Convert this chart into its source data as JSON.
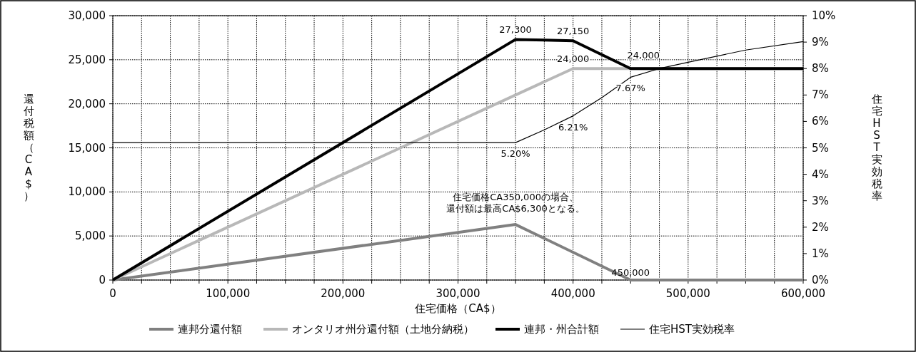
{
  "chart_data": {
    "type": "line",
    "xlabel": "住宅価格（CA$）",
    "ylabel": "還付税額（CA$）",
    "y2label": "住宅HST実効税率",
    "xlim": [
      0,
      600000
    ],
    "xticks": [
      0,
      {
        "value": 25000,
        "label": null
      },
      {
        "value": 50000,
        "label": null
      },
      {
        "value": 75000,
        "label": null
      },
      {
        "value": 100000,
        "label": "100,000"
      },
      {
        "value": 125000,
        "label": null
      },
      {
        "value": 150000,
        "label": null
      },
      {
        "value": 175000,
        "label": null
      },
      {
        "value": 200000,
        "label": "200,000"
      },
      {
        "value": 225000,
        "label": null
      },
      {
        "value": 250000,
        "label": null
      },
      {
        "value": 275000,
        "label": null
      },
      {
        "value": 300000,
        "label": "300,000"
      },
      {
        "value": 325000,
        "label": null
      },
      {
        "value": 350000,
        "label": null
      },
      {
        "value": 375000,
        "label": null
      },
      {
        "value": 400000,
        "label": "400,000"
      },
      {
        "value": 425000,
        "label": null
      },
      {
        "value": 450000,
        "label": null
      },
      {
        "value": 475000,
        "label": null
      },
      {
        "value": 500000,
        "label": "500,000"
      },
      {
        "value": 525000,
        "label": null
      },
      {
        "value": 550000,
        "label": null
      },
      {
        "value": 575000,
        "label": null
      },
      {
        "value": 600000,
        "label": "600,000"
      }
    ],
    "ylim": [
      0,
      30000
    ],
    "yticks": [
      0,
      {
        "value": 5000,
        "label": "5,000"
      },
      {
        "value": 10000,
        "label": "10,000"
      },
      {
        "value": 15000,
        "label": "15,000"
      },
      {
        "value": 20000,
        "label": "20,000"
      },
      {
        "value": 25000,
        "label": "25,000"
      },
      {
        "value": 30000,
        "label": "30,000"
      }
    ],
    "y2lim": [
      0,
      10
    ],
    "y2ticks": [
      {
        "value": 0,
        "label": "0%"
      },
      {
        "value": 1,
        "label": "1%"
      },
      {
        "value": 2,
        "label": "2%"
      },
      {
        "value": 3,
        "label": "3%"
      },
      {
        "value": 4,
        "label": "4%"
      },
      {
        "value": 5,
        "label": "5%"
      },
      {
        "value": 6,
        "label": "6%"
      },
      {
        "value": 7,
        "label": "7%"
      },
      {
        "value": 8,
        "label": "8%"
      },
      {
        "value": 9,
        "label": "9%"
      },
      {
        "value": 10,
        "label": "10%"
      }
    ],
    "grid": true,
    "legend": "bottom",
    "marker": "none",
    "series": [
      {
        "name": "連邦分還付額",
        "color": "#808080",
        "x": [
          0,
          350000,
          450000,
          600000
        ],
        "values": [
          0,
          6300,
          0,
          0
        ]
      },
      {
        "name": "オンタリオ州分還付額（土地分納税）",
        "color": "#b8b8b8",
        "x": [
          0,
          400000,
          600000
        ],
        "values": [
          0,
          24000,
          24000
        ],
        "value_labels": [
          null,
          "24,000",
          null
        ]
      },
      {
        "name": "連邦・州合計額",
        "color": "#000000",
        "x": [
          0,
          350000,
          400000,
          450000,
          600000
        ],
        "values": [
          0,
          27300,
          27150,
          24000,
          24000
        ],
        "value_labels": [
          null,
          "27,300",
          "27,150",
          "24,000",
          null
        ]
      },
      {
        "name": "住宅HST実効税率",
        "color": "#000000",
        "axis": "y2",
        "x": [
          0,
          350000,
          375000,
          400000,
          425000,
          450000,
          475000,
          500000,
          550000,
          600000
        ],
        "values": [
          5.2,
          5.2,
          5.68,
          6.21,
          6.9,
          7.67,
          8.0,
          8.24,
          8.7,
          9.02
        ],
        "value_labels": [
          null,
          "5.20%",
          null,
          "6.21%",
          null,
          "7.67%",
          null,
          null,
          null,
          null
        ]
      }
    ],
    "annotations": [
      {
        "text": "住宅価格CA350,000の場合、還付額は最高CA$6,300となる。",
        "x": 350000,
        "y": 6300
      },
      {
        "text": "450,000",
        "x": 450000,
        "y": 0
      }
    ]
  }
}
